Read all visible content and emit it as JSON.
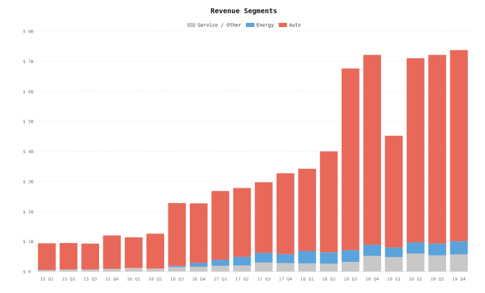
{
  "chart_data": {
    "type": "bar",
    "stacked": true,
    "title": "Revenue Segments",
    "xlabel": "",
    "ylabel": "",
    "ylim": [
      0,
      8
    ],
    "grid": true,
    "legend_position": "top-center",
    "categories": [
      "15 Q1",
      "15 Q2",
      "15 Q3",
      "15 Q4",
      "16 Q1",
      "16 Q2",
      "16 Q3",
      "16 Q4",
      "17 Q1",
      "17 Q2",
      "17 Q3",
      "17 Q4",
      "18 Q1",
      "18 Q2",
      "18 Q3",
      "18 Q4",
      "19 Q1",
      "19 Q2",
      "19 Q3",
      "19 Q4"
    ],
    "y_ticks": [
      0,
      1,
      2,
      3,
      4,
      5,
      6,
      7,
      8
    ],
    "y_tick_labels": [
      "$ 0",
      "$ 1B",
      "$ 2B",
      "$ 3B",
      "$ 4B",
      "$ 5B",
      "$ 6B",
      "$ 7B",
      "$ 8B"
    ],
    "series": [
      {
        "name": "Service / Other",
        "color": "#c8c8c8",
        "values": [
          0.05,
          0.07,
          0.07,
          0.09,
          0.12,
          0.1,
          0.15,
          0.16,
          0.19,
          0.2,
          0.3,
          0.28,
          0.27,
          0.26,
          0.32,
          0.52,
          0.48,
          0.6,
          0.54,
          0.57
        ]
      },
      {
        "name": "Energy",
        "color": "#5ba3dc",
        "values": [
          0.0,
          0.0,
          0.0,
          0.0,
          0.0,
          0.0,
          0.04,
          0.13,
          0.2,
          0.29,
          0.32,
          0.3,
          0.41,
          0.38,
          0.39,
          0.37,
          0.32,
          0.37,
          0.39,
          0.44
        ]
      },
      {
        "name": "Auto",
        "color": "#e8695a",
        "values": [
          0.89,
          0.88,
          0.86,
          1.11,
          1.02,
          1.16,
          2.09,
          1.98,
          2.29,
          2.29,
          2.35,
          2.69,
          2.74,
          3.36,
          6.05,
          6.32,
          3.72,
          6.13,
          6.28,
          6.36
        ]
      }
    ]
  }
}
